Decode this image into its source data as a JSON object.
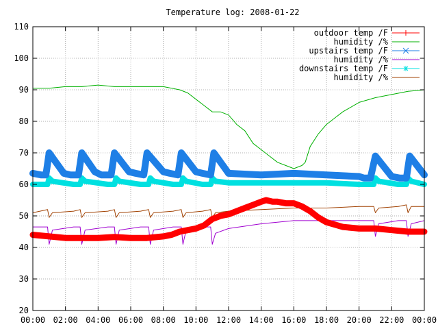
{
  "chart_data": {
    "type": "line",
    "title": "Temperature log: 2008-01-22",
    "xlabel": "",
    "ylabel": "",
    "xlim": [
      0,
      24
    ],
    "ylim": [
      20,
      110
    ],
    "x_ticks": [
      "00:00",
      "02:00",
      "04:00",
      "06:00",
      "08:00",
      "10:00",
      "12:00",
      "14:00",
      "16:00",
      "18:00",
      "20:00",
      "22:00",
      "00:00"
    ],
    "y_ticks": [
      "20",
      "30",
      "40",
      "50",
      "60",
      "70",
      "80",
      "90",
      "100",
      "110"
    ],
    "grid": true,
    "legend_position": "top-right",
    "series": [
      {
        "name": "outdoor temp /F",
        "color": "#ff0000",
        "marker": "plus",
        "x": [
          0,
          1,
          2,
          3,
          4,
          5,
          6,
          7,
          8,
          8.5,
          9,
          9.5,
          10,
          10.5,
          11,
          11.5,
          12,
          12.5,
          13,
          13.5,
          14,
          14.3,
          14.7,
          15,
          15.5,
          16,
          16.5,
          17,
          17.5,
          18,
          19,
          20,
          21,
          22,
          23,
          24
        ],
        "y": [
          44,
          43.5,
          43,
          43,
          43,
          43.3,
          43,
          43,
          43.5,
          44,
          45,
          45.5,
          46,
          47,
          49,
          50,
          50.5,
          51.5,
          52.5,
          53.5,
          54.5,
          55,
          54.5,
          54.5,
          54,
          54,
          53,
          51.5,
          49.5,
          48,
          46.5,
          46,
          46,
          45.5,
          45,
          45
        ]
      },
      {
        "name": "humidity /%",
        "color": "#00b000",
        "marker": "none",
        "x": [
          0,
          1,
          2,
          3,
          4,
          5,
          6,
          7,
          8,
          9,
          9.5,
          10,
          10.5,
          11,
          11.5,
          12,
          12.5,
          13,
          13.5,
          14,
          14.5,
          15,
          15.5,
          16,
          16.5,
          16.7,
          17,
          17.5,
          18,
          18.5,
          19,
          20,
          21,
          22,
          23,
          24
        ],
        "y": [
          90.5,
          90.5,
          91,
          91,
          91.5,
          91,
          91,
          91,
          91,
          90,
          89,
          87,
          85,
          83,
          83,
          82,
          79,
          77,
          73,
          71,
          69,
          67,
          66,
          65,
          66,
          67,
          72,
          76,
          79,
          81,
          83,
          86,
          87.5,
          88.5,
          89.5,
          90
        ]
      },
      {
        "name": "upstairs temp /F",
        "color": "#1e7fe6",
        "marker": "x",
        "x": [
          0,
          0.5,
          0.8,
          1.0,
          1.9,
          2.3,
          2.8,
          3.0,
          3.8,
          4.2,
          4.8,
          5.0,
          5.9,
          6.3,
          6.8,
          7.0,
          8.0,
          8.4,
          8.9,
          9.1,
          10.0,
          10.4,
          10.9,
          11.1,
          12,
          14,
          16,
          18,
          20,
          20.3,
          20.7,
          21.0,
          22.0,
          22.5,
          22.9,
          23.1,
          24
        ],
        "y": [
          63.5,
          63,
          63,
          70,
          63.5,
          63,
          63,
          70,
          64,
          63,
          63,
          70,
          64,
          63.5,
          63,
          70,
          64,
          63.5,
          63,
          70,
          64,
          63.5,
          63,
          70,
          63.5,
          63,
          63.5,
          63,
          62.5,
          62,
          62,
          69,
          62.5,
          62,
          62,
          69,
          63
        ]
      },
      {
        "name": "humidity /%",
        "color": "#a000d0",
        "marker": "none",
        "x": [
          0,
          0.9,
          1.0,
          1.2,
          2.5,
          2.9,
          3.0,
          3.2,
          4.6,
          5.0,
          5.1,
          5.3,
          6.6,
          7.1,
          7.2,
          7.4,
          8.6,
          9.1,
          9.2,
          9.4,
          10.4,
          10.9,
          11.0,
          11.2,
          12,
          14,
          16,
          18,
          20,
          20.9,
          21.0,
          21.2,
          22.4,
          22.9,
          23.0,
          23.2,
          24
        ],
        "y": [
          46.5,
          46.5,
          41,
          45.5,
          46.5,
          46.5,
          41,
          45.5,
          46.5,
          46.5,
          41,
          45.5,
          46.5,
          46.5,
          41,
          45.5,
          46.5,
          46.5,
          41,
          45.5,
          46.5,
          46.5,
          41,
          44.5,
          46,
          47.5,
          48.5,
          48.5,
          48.5,
          48.5,
          43.5,
          47.5,
          48.5,
          48.5,
          43.5,
          47.5,
          48.5
        ]
      },
      {
        "name": "downstairs temp /F",
        "color": "#00e0e0",
        "marker": "star",
        "x": [
          0,
          0.9,
          1.0,
          1.2,
          2.5,
          2.9,
          3.0,
          3.2,
          4.6,
          5.0,
          5.1,
          5.3,
          6.6,
          7.1,
          7.2,
          7.4,
          8.6,
          9.1,
          9.2,
          9.4,
          10.4,
          10.9,
          11.0,
          11.2,
          12,
          14,
          16,
          18,
          20,
          20.9,
          21.0,
          21.2,
          22.4,
          22.9,
          23.0,
          23.2,
          24
        ],
        "y": [
          60,
          60,
          62,
          61,
          60,
          60,
          62,
          61,
          60,
          60,
          62,
          61,
          60,
          60,
          62,
          61,
          60,
          60,
          62,
          61,
          60,
          60,
          62,
          61,
          60.5,
          60.5,
          60.5,
          60.5,
          60,
          60,
          62,
          61,
          60,
          60,
          62,
          61,
          60
        ]
      },
      {
        "name": "humidity /%",
        "color": "#a04000",
        "marker": "none",
        "x": [
          0,
          0.9,
          1.0,
          1.2,
          2.5,
          2.9,
          3.0,
          3.2,
          4.6,
          5.0,
          5.1,
          5.3,
          6.6,
          7.1,
          7.2,
          7.4,
          8.6,
          9.1,
          9.2,
          9.4,
          10.4,
          10.9,
          11.0,
          11.2,
          12,
          14,
          16,
          18,
          20,
          20.9,
          21.0,
          21.2,
          22.4,
          22.9,
          23.0,
          23.2,
          24
        ],
        "y": [
          51,
          52,
          49.5,
          51,
          51.5,
          52,
          49.5,
          51,
          51.5,
          52,
          49.5,
          51,
          51.5,
          52,
          49.5,
          51,
          51.5,
          52,
          49.5,
          51,
          51.5,
          52,
          49.5,
          51,
          51.5,
          52,
          52.5,
          52.5,
          53,
          53,
          51,
          52.5,
          53,
          53.5,
          51,
          53,
          53
        ]
      }
    ]
  }
}
